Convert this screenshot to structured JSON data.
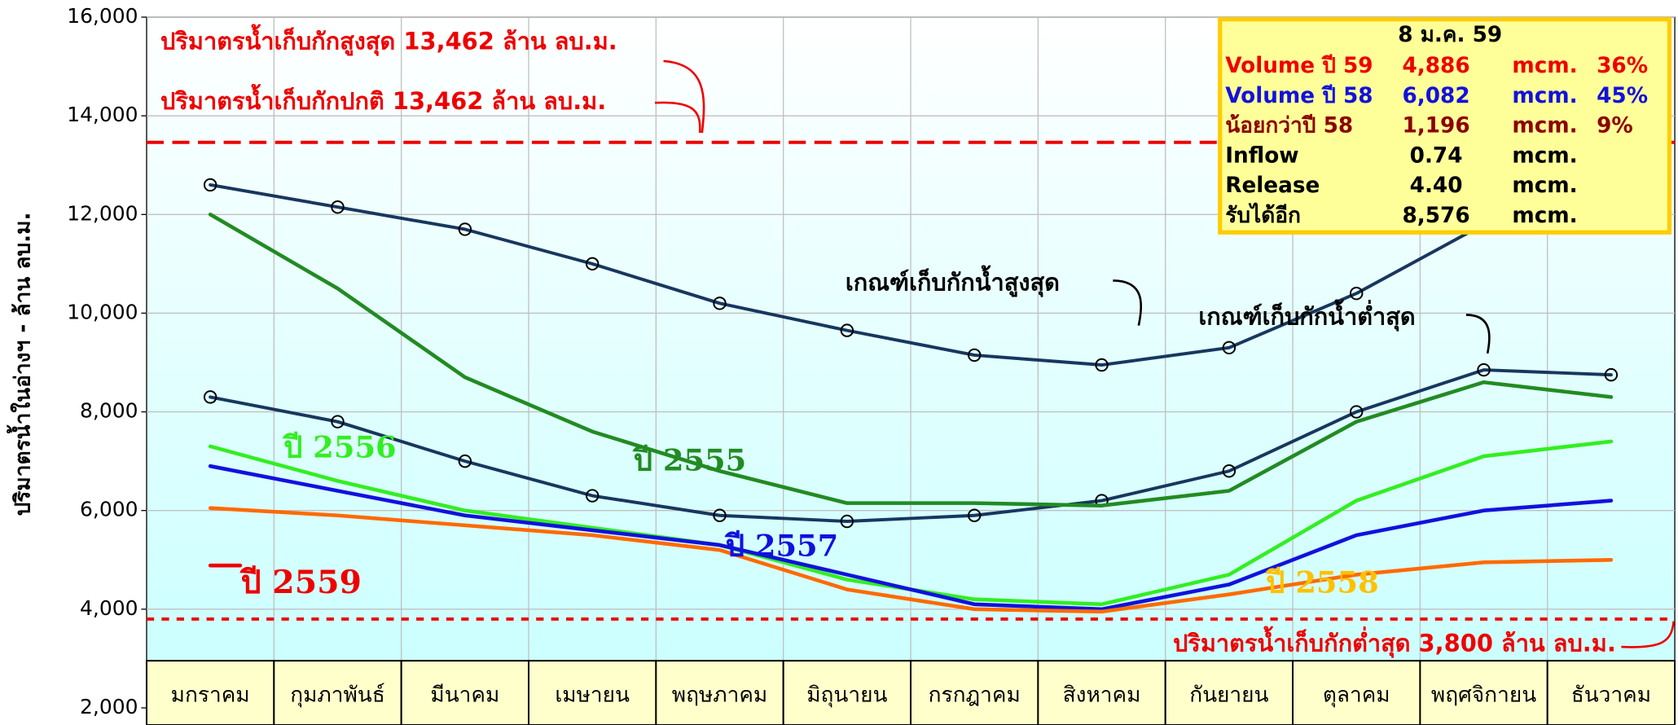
{
  "chart_data": {
    "type": "line",
    "y_label": "ปริมาตรน้ำในอ่างฯ - ล้าน ลบ.ม.",
    "categories": [
      "มกราคม",
      "กุมภาพันธ์",
      "มีนาคม",
      "เมษายน",
      "พฤษภาคม",
      "มิถุนายน",
      "กรกฎาคม",
      "สิงหาคม",
      "กันยายน",
      "ตุลาคม",
      "พฤศจิกายน",
      "ธันวาคม"
    ],
    "ylim": [
      2000,
      16000
    ],
    "yticks": [
      {
        "value": 2000,
        "label": "2,000"
      },
      {
        "value": 4000,
        "label": "4,000"
      },
      {
        "value": 6000,
        "label": "6,000"
      },
      {
        "value": 8000,
        "label": "8,000"
      },
      {
        "value": 10000,
        "label": "10,000"
      },
      {
        "value": 12000,
        "label": "12,000"
      },
      {
        "value": 14000,
        "label": "14,000"
      },
      {
        "value": 16000,
        "label": "16,000"
      }
    ],
    "grid": true,
    "series": [
      {
        "name": "เกณฑ์เก็บกักน้ำสูงสุด",
        "color": "#17375e",
        "marker": true,
        "values": [
          12600,
          12150,
          11700,
          11000,
          10200,
          9650,
          9150,
          8950,
          9300,
          10400,
          11800,
          12700
        ]
      },
      {
        "name": "เกณฑ์เก็บกักน้ำต่ำสุด",
        "color": "#17375e",
        "marker": true,
        "values": [
          8300,
          7800,
          7000,
          6300,
          5900,
          5780,
          5900,
          6200,
          6800,
          8000,
          8850,
          8750
        ]
      },
      {
        "name": "ปี 2555",
        "color": "#228b22",
        "values": [
          12000,
          10500,
          8700,
          7600,
          6800,
          6150,
          6150,
          6100,
          6400,
          7800,
          8600,
          8300
        ]
      },
      {
        "name": "ปี 2556",
        "color": "#33ee22",
        "values": [
          7300,
          6600,
          6000,
          5650,
          5300,
          4600,
          4200,
          4100,
          4700,
          6200,
          7100,
          7400
        ]
      },
      {
        "name": "ปี 2557",
        "color": "#1111dd",
        "values": [
          6900,
          6400,
          5900,
          5600,
          5300,
          4700,
          4100,
          4000,
          4500,
          5500,
          6000,
          6200
        ]
      },
      {
        "name": "ปี 2558",
        "color": "#ff6a00",
        "label_color": "#ffc000",
        "values": [
          6050,
          5900,
          5700,
          5500,
          5200,
          4400,
          4000,
          3950,
          4300,
          4700,
          4950,
          5000
        ]
      },
      {
        "name": "ปี 2559",
        "color": "#ee0000",
        "values": [
          4886,
          null,
          null,
          null,
          null,
          null,
          null,
          null,
          null,
          null,
          null,
          null
        ]
      }
    ],
    "reference_lines": [
      {
        "value": 13462,
        "color": "#ee0000",
        "style": "dashed"
      },
      {
        "value": 3800,
        "color": "#ee0000",
        "style": "dotted"
      }
    ],
    "annotations": [
      "ปริมาตรน้ำเก็บกักสูงสุด 13,462 ล้าน ลบ.ม.",
      "ปริมาตรน้ำเก็บกักปกติ  13,462 ล้าน ลบ.ม.",
      "ปริมาตรน้ำเก็บกักต่ำสุด 3,800 ล้าน ลบ.ม."
    ],
    "info_box": {
      "title": "8 ม.ค. 59",
      "rows": [
        {
          "color": "#ee0000",
          "cells": [
            "Volume ปี 59",
            "4,886",
            "mcm.",
            "36%"
          ]
        },
        {
          "color": "#1111dd",
          "cells": [
            "Volume ปี 58",
            "6,082",
            "mcm.",
            "45%"
          ]
        },
        {
          "color": "#8b0000",
          "cells": [
            "น้อยกว่าปี 58",
            "1,196",
            "mcm.",
            "9%"
          ]
        },
        {
          "color": "#000000",
          "cells": [
            "Inflow",
            "0.74",
            "mcm."
          ]
        },
        {
          "color": "#000000",
          "cells": [
            "Release",
            "4.40",
            "mcm."
          ]
        },
        {
          "color": "#000000",
          "cells": [
            "รับได้อีก",
            "8,576",
            "mcm."
          ]
        }
      ]
    }
  }
}
